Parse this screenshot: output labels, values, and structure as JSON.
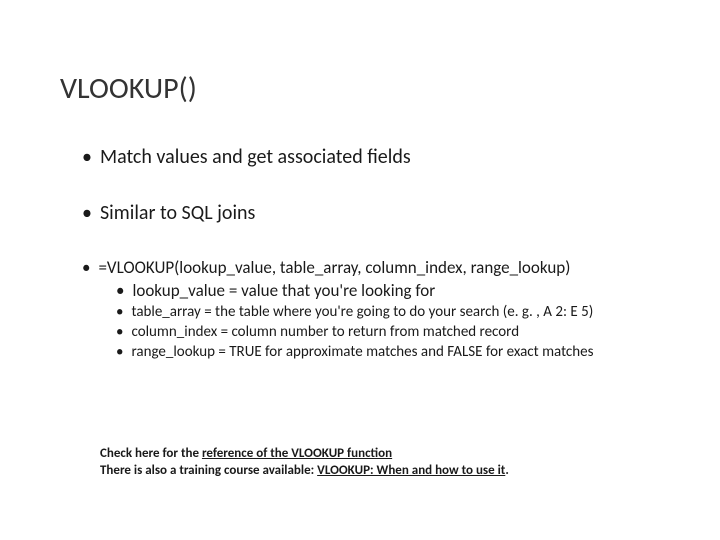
{
  "title": "VLOOKUP()",
  "bullets": {
    "b1": "Match values and get associated fields",
    "b2": "Similar to SQL joins",
    "b3": "=VLOOKUP(lookup_value, table_array, column_index, range_lookup)",
    "s1": "lookup_value = value that you're looking for",
    "s2": "table_array = the table where you're going to do your search (e. g. , A 2: E 5)",
    "s3": "column_index = column number to return from matched record",
    "s4": "range_lookup = TRUE for approximate matches and FALSE for exact matches"
  },
  "footer": {
    "line1_pre": "Check here for the ",
    "line1_link": "reference of the VLOOKUP function",
    "line2_pre": "There is also a training course available: ",
    "line2_link": "VLOOKUP: When and how to use it",
    "period": "."
  },
  "colors": {
    "background": "#ffffff",
    "title_color": "#333333",
    "text_color": "#1a1a1a"
  },
  "typography": {
    "title_fontsize": 30,
    "bullet_fontsize": 20,
    "subbullet_fontsize": 17,
    "subbullet_small_fontsize": 15,
    "footer_fontsize": 13,
    "font_family": "Calibri"
  }
}
